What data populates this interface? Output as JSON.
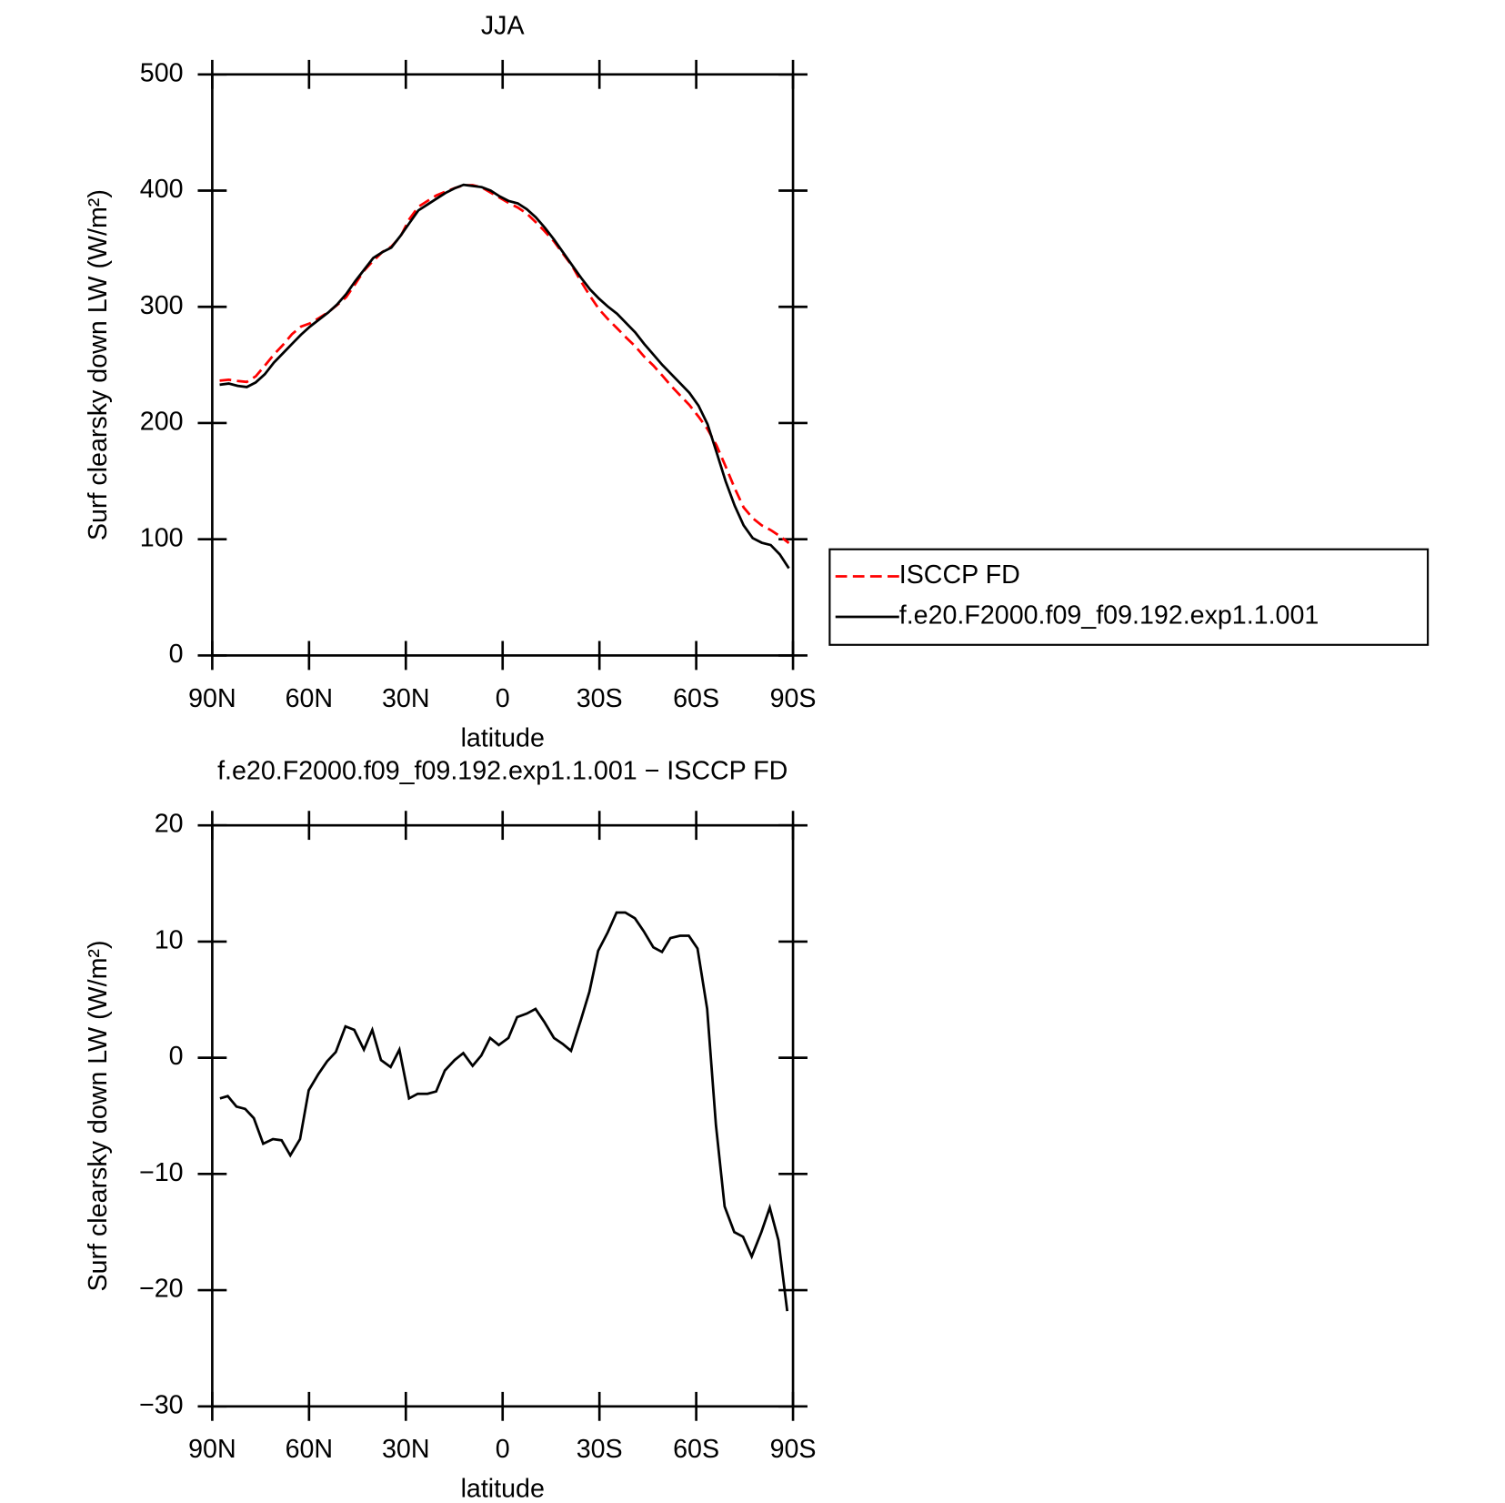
{
  "chart_data": [
    {
      "type": "line",
      "title": "JJA",
      "xlabel": "latitude",
      "ylabel": "Surf clearsky down LW (W/m²)",
      "x": [
        87.7,
        84.9,
        82.1,
        79.3,
        76.5,
        73.7,
        70.9,
        68.1,
        65.3,
        62.5,
        59.7,
        56.9,
        54.1,
        51.3,
        48.5,
        45.7,
        42.9,
        40.1,
        37.3,
        34.5,
        31.7,
        28.9,
        26.1,
        23.3,
        20.5,
        17.7,
        14.9,
        12.1,
        9.3,
        6.5,
        3.7,
        0.9,
        -1.9,
        -4.7,
        -7.5,
        -10.3,
        -13.1,
        -15.9,
        -18.7,
        -21.5,
        -24.3,
        -27.1,
        -29.9,
        -32.7,
        -35.5,
        -38.3,
        -41.1,
        -43.9,
        -46.7,
        -49.5,
        -52.3,
        -55.1,
        -57.9,
        -60.7,
        -63.5,
        -66.3,
        -69.1,
        -71.9,
        -74.7,
        -77.5,
        -80.3,
        -83.1,
        -85.9,
        -88.7
      ],
      "series": [
        {
          "name": "ISCCP FD",
          "color": "#ff0000",
          "dashed": true,
          "values": [
            236.5,
            237.3,
            236.2,
            235.4,
            240.2,
            249.4,
            259,
            267.1,
            276.4,
            283,
            285.8,
            290.4,
            295.3,
            301.5,
            308.3,
            319.6,
            331.3,
            339.6,
            347.2,
            351.8,
            360.3,
            375.5,
            386.1,
            391.1,
            395.9,
            399.1,
            402.2,
            404.6,
            404.7,
            402.8,
            398.3,
            393.9,
            389.3,
            385.5,
            380.2,
            372.8,
            364.9,
            356.3,
            345.8,
            335.4,
            321.8,
            309.3,
            297.8,
            289.2,
            281.5,
            273.5,
            266,
            257.1,
            249.5,
            240.9,
            231.7,
            223.5,
            215.5,
            205.6,
            194.8,
            180.8,
            162.8,
            144,
            127.4,
            118.1,
            112,
            107.9,
            102.7,
            96.8
          ]
        },
        {
          "name": "f.e20.F2000.f09_f09.192.exp1.1.001",
          "color": "#000000",
          "dashed": false,
          "values": [
            233,
            234,
            232,
            231,
            235,
            242,
            252,
            260,
            268,
            276,
            283,
            289,
            295,
            302,
            311,
            322,
            332,
            342,
            347,
            351,
            361,
            372,
            383,
            388,
            393,
            398,
            402,
            405,
            404,
            403,
            400,
            395,
            391,
            389,
            384,
            377,
            368,
            358,
            347,
            336,
            325,
            315,
            307,
            300,
            294,
            286,
            278,
            268,
            259,
            250,
            242,
            234,
            226,
            215,
            199,
            175,
            150,
            129,
            112,
            101,
            97,
            95,
            87,
            75
          ]
        }
      ],
      "xlim": [
        90,
        -90
      ],
      "xticks": [
        {
          "value": 90,
          "label": "90N"
        },
        {
          "value": 60,
          "label": "60N"
        },
        {
          "value": 30,
          "label": "30N"
        },
        0,
        {
          "value": -30,
          "label": "30S"
        },
        {
          "value": -60,
          "label": "60S"
        },
        {
          "value": -90,
          "label": "90S"
        }
      ],
      "ylim": [
        0,
        500
      ],
      "yticks": [
        0,
        100,
        200,
        300,
        400,
        500
      ],
      "legend": "right"
    },
    {
      "type": "line",
      "title": "f.e20.F2000.f09_f09.192.exp1.1.001 − ISCCP FD",
      "xlabel": "latitude",
      "ylabel": "Surf clearsky down LW (W/m²)",
      "x": [
        87.6,
        85.2,
        82.5,
        79.8,
        77.1,
        74.2,
        71.2,
        68.5,
        65.8,
        62.8,
        60.1,
        57.1,
        54.4,
        51.7,
        48.7,
        46.0,
        43.0,
        40.4,
        37.7,
        34.7,
        32.0,
        29.0,
        26.3,
        23.3,
        20.6,
        17.9,
        14.9,
        12.2,
        9.3,
        6.6,
        3.9,
        1.2,
        -1.8,
        -4.5,
        -7.5,
        -10.2,
        -12.9,
        -15.9,
        -18.6,
        -21.2,
        -24.2,
        -26.9,
        -29.6,
        -32.6,
        -35.3,
        -38.0,
        -41.0,
        -43.7,
        -46.7,
        -49.4,
        -52.0,
        -55.0,
        -57.7,
        -60.4,
        -63.4,
        -66.1,
        -68.8,
        -71.8,
        -74.5,
        -77.2,
        -80.2,
        -82.8,
        -85.5,
        -88.2
      ],
      "series": [
        {
          "color": "#000000",
          "dashed": false,
          "values": [
            -3.5,
            -3.3,
            -4.2,
            -4.4,
            -5.2,
            -7.4,
            -7.0,
            -7.1,
            -8.4,
            -7.0,
            -2.8,
            -1.4,
            -0.3,
            0.5,
            2.7,
            2.4,
            0.7,
            2.4,
            -0.2,
            -0.8,
            0.7,
            -3.5,
            -3.1,
            -3.1,
            -2.9,
            -1.1,
            -0.2,
            0.4,
            -0.7,
            0.2,
            1.7,
            1.1,
            1.7,
            3.5,
            3.8,
            4.2,
            3.1,
            1.7,
            1.2,
            0.6,
            3.2,
            5.7,
            9.2,
            10.8,
            12.5,
            12.5,
            12.0,
            10.9,
            9.5,
            9.1,
            10.3,
            10.5,
            10.5,
            9.4,
            4.2,
            -5.8,
            -12.8,
            -15.0,
            -15.4,
            -17.1,
            -15.0,
            -12.9,
            -15.7,
            -21.8
          ]
        }
      ],
      "xlim": [
        90,
        -90
      ],
      "xticks": [
        {
          "value": 90,
          "label": "90N"
        },
        {
          "value": 60,
          "label": "60N"
        },
        {
          "value": 30,
          "label": "30N"
        },
        0,
        {
          "value": -30,
          "label": "30S"
        },
        {
          "value": -60,
          "label": "60S"
        },
        {
          "value": -90,
          "label": "90S"
        }
      ],
      "ylim": [
        -30,
        20
      ],
      "yticks": [
        {
          "value": -30,
          "label": "−30"
        },
        {
          "value": -20,
          "label": "−20"
        },
        {
          "value": -10,
          "label": "−10"
        },
        0,
        10,
        20
      ]
    }
  ]
}
